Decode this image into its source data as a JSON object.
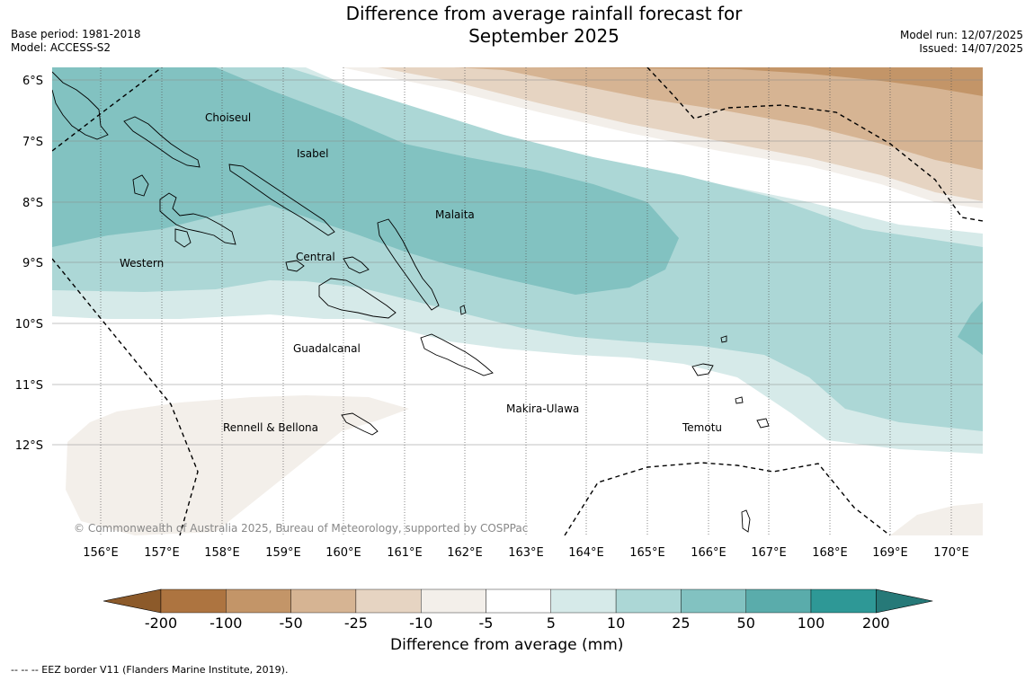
{
  "title_line1": "Difference from average rainfall forecast for",
  "title_line2": "September 2025",
  "meta_left": {
    "base_period": "Base period: 1981-2018",
    "model": "Model: ACCESS-S2"
  },
  "meta_right": {
    "model_run": "Model run: 12/07/2025",
    "issued": "Issued: 14/07/2025"
  },
  "latitudes": [
    "6°S",
    "7°S",
    "8°S",
    "9°S",
    "10°S",
    "11°S",
    "12°S"
  ],
  "longitudes": [
    "156°E",
    "157°E",
    "158°E",
    "159°E",
    "160°E",
    "161°E",
    "162°E",
    "163°E",
    "164°E",
    "165°E",
    "166°E",
    "167°E",
    "168°E",
    "169°E",
    "170°E"
  ],
  "places": {
    "choiseul": "Choiseul",
    "isabel": "Isabel",
    "malaita": "Malaita",
    "western": "Western",
    "central": "Central",
    "guadalcanal": "Guadalcanal",
    "makira": "Makira-Ulawa",
    "rennell": "Rennell & Bellona",
    "temotu": "Temotu"
  },
  "copyright": "© Commonwealth of Australia 2025, Bureau of Meteorology, supported by COSPPac",
  "colorbar": {
    "title": "Difference from average (mm)",
    "ticks": [
      "-200",
      "-100",
      "-50",
      "-25",
      "-10",
      "-5",
      "5",
      "10",
      "25",
      "50",
      "100",
      "200"
    ],
    "colors": [
      "#8c5a2a",
      "#ad7440",
      "#c39568",
      "#d6b493",
      "#e6d4c2",
      "#f3efea",
      "#ffffff",
      "#d6eae9",
      "#acd7d6",
      "#82c2c1",
      "#5aacab",
      "#2e9896",
      "#267978"
    ]
  },
  "footer": "-- -- -- EEZ border V11 (Flanders Marine Institute, 2019)."
}
